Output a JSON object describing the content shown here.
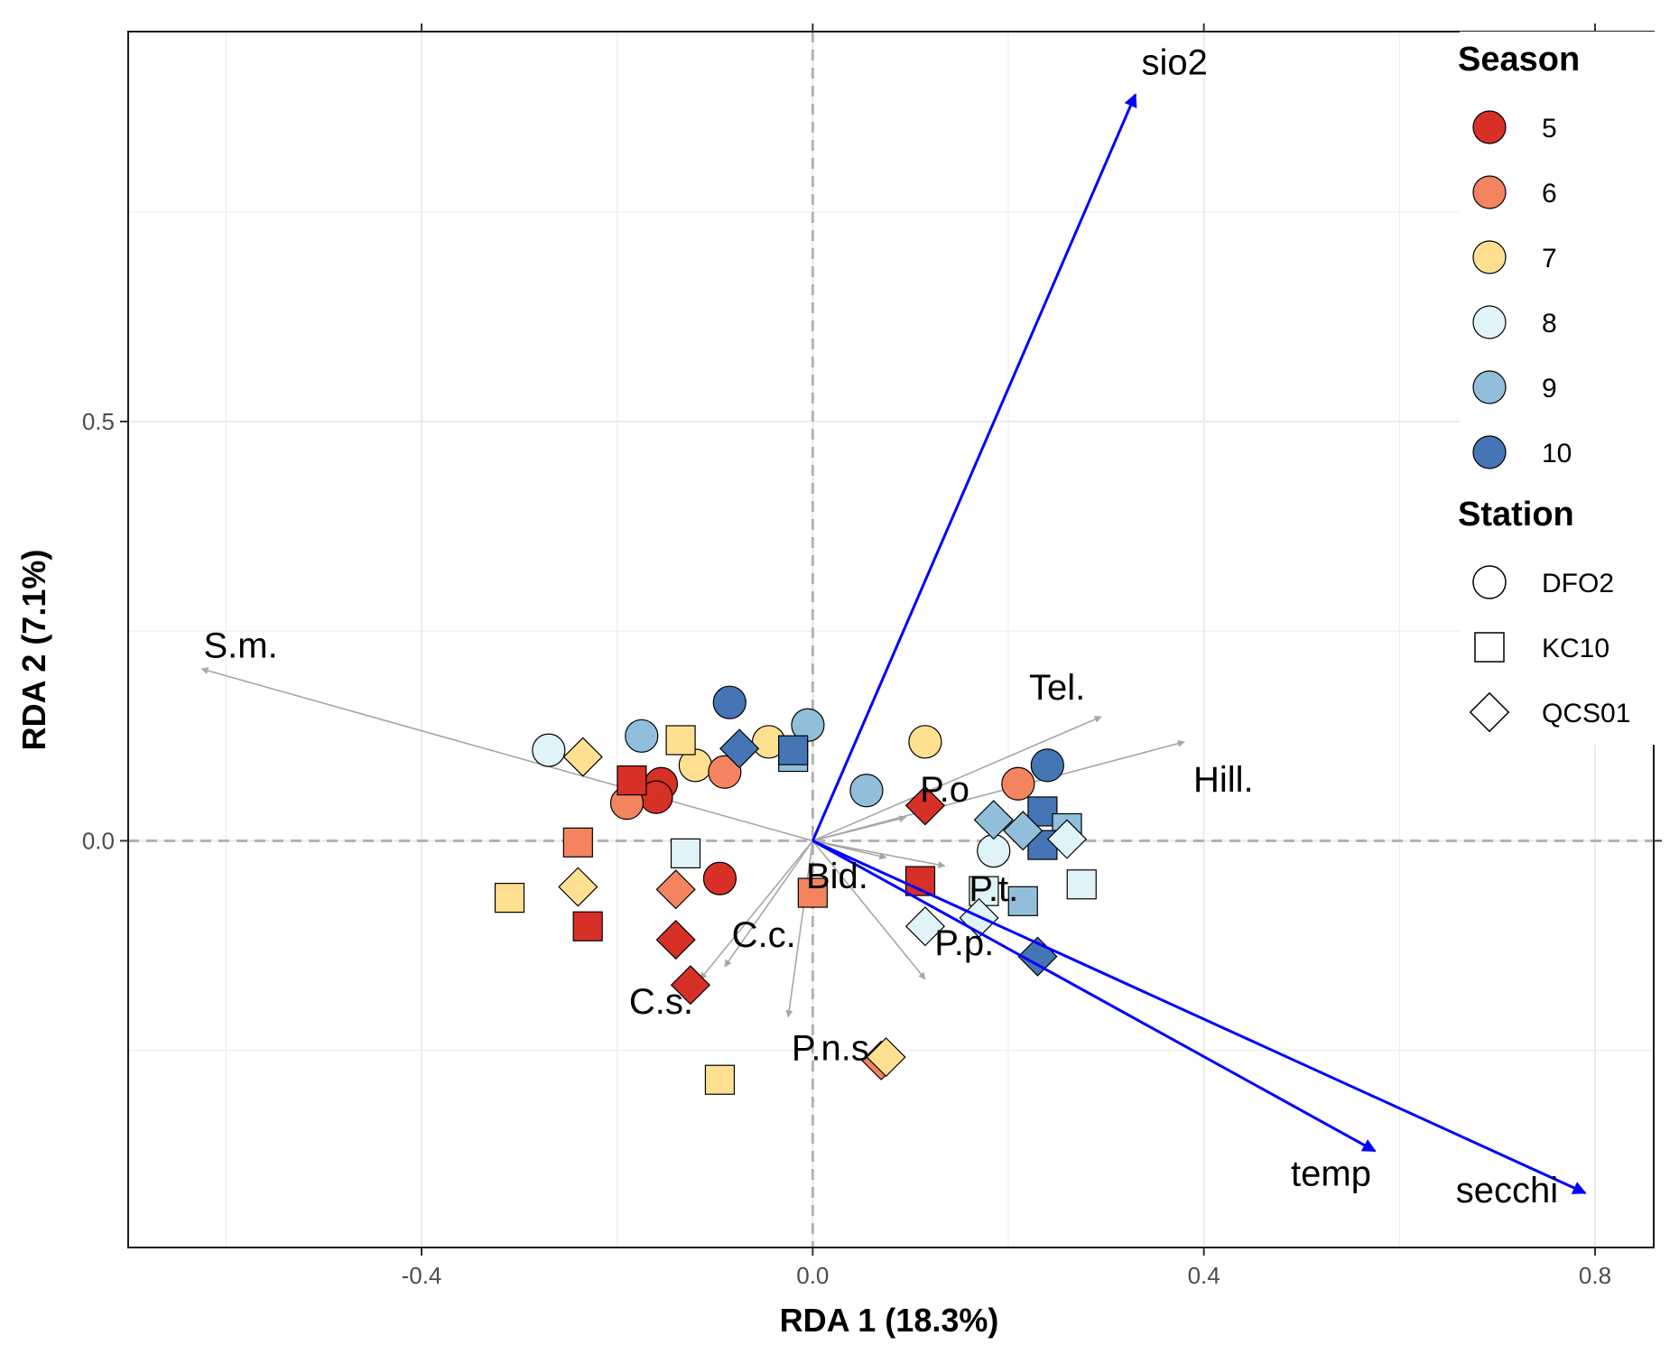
{
  "chart_data": {
    "type": "scatter",
    "title": "",
    "xlabel": "RDA 1 (18.3%)",
    "ylabel": "RDA 2 (7.1%)",
    "xlim": [
      -0.7,
      0.86
    ],
    "ylim": [
      -0.485,
      0.965
    ],
    "x_ticks": [
      -0.4,
      0.0,
      0.4,
      0.8
    ],
    "x_tick_labels": [
      "-0.4",
      "0.0",
      "0.4",
      "0.8"
    ],
    "y_ticks": [
      0.0,
      0.5
    ],
    "y_tick_labels": [
      "0.0",
      "0.5"
    ],
    "minor_x": [
      -0.6,
      -0.2,
      0.2,
      0.6
    ],
    "minor_y": [
      -0.25,
      0.25,
      0.75
    ],
    "grid": true,
    "reference_lines": {
      "x": 0,
      "y": 0
    },
    "colors": {
      "5": "#d73027",
      "6": "#f4845f",
      "7": "#fee090",
      "8": "#e0f3f8",
      "9": "#91bfdb",
      "10": "#4575b4",
      "env_arrow": "#0000ff",
      "species_arrow": "#a6a6a6",
      "grid": "#ebebeb",
      "zero_line": "#b3b3b3"
    },
    "legend": {
      "position": "top-right",
      "season_title": "Season",
      "seasons": [
        "5",
        "6",
        "7",
        "8",
        "9",
        "10"
      ],
      "station_title": "Station",
      "stations": [
        {
          "name": "DFO2",
          "shape": "circle"
        },
        {
          "name": "KC10",
          "shape": "square"
        },
        {
          "name": "QCS01",
          "shape": "diamond"
        }
      ]
    },
    "env_vectors": [
      {
        "name": "sio2",
        "x": 0.33,
        "y": 0.89,
        "label_x": 0.37,
        "label_y": 0.925
      },
      {
        "name": "temp",
        "x": 0.575,
        "y": -0.37,
        "label_x": 0.53,
        "label_y": -0.4
      },
      {
        "name": "secchi",
        "x": 0.79,
        "y": -0.42,
        "label_x": 0.71,
        "label_y": -0.42
      }
    ],
    "species_vectors": [
      {
        "name": "S.m.",
        "x": -0.625,
        "y": 0.205,
        "label_x": -0.585,
        "label_y": 0.23
      },
      {
        "name": "Tel.",
        "x": 0.295,
        "y": 0.148,
        "label_x": 0.25,
        "label_y": 0.18
      },
      {
        "name": "Hill.",
        "x": 0.38,
        "y": 0.118,
        "label_x": 0.42,
        "label_y": 0.07
      },
      {
        "name": "P.o",
        "x": 0.095,
        "y": 0.028,
        "label_x": 0.135,
        "label_y": 0.058
      },
      {
        "name": "Bid.",
        "x": 0.075,
        "y": -0.02,
        "label_x": 0.025,
        "label_y": -0.045
      },
      {
        "name": "P.t.",
        "x": 0.135,
        "y": -0.03,
        "label_x": 0.185,
        "label_y": -0.06
      },
      {
        "name": "P.p.",
        "x": 0.115,
        "y": -0.165,
        "label_x": 0.155,
        "label_y": -0.125
      },
      {
        "name": "C.c.",
        "x": -0.09,
        "y": -0.15,
        "label_x": -0.05,
        "label_y": -0.115
      },
      {
        "name": "C.s.",
        "x": -0.115,
        "y": -0.165,
        "label_x": -0.155,
        "label_y": -0.195
      },
      {
        "name": "P.n.s",
        "x": -0.025,
        "y": -0.21,
        "label_x": 0.018,
        "label_y": -0.25
      }
    ],
    "points": [
      {
        "x": -0.27,
        "y": 0.108,
        "season": "8",
        "station": "DFO2"
      },
      {
        "x": -0.175,
        "y": 0.125,
        "season": "9",
        "station": "DFO2"
      },
      {
        "x": -0.085,
        "y": 0.165,
        "season": "10",
        "station": "DFO2"
      },
      {
        "x": -0.045,
        "y": 0.118,
        "season": "7",
        "station": "DFO2"
      },
      {
        "x": -0.005,
        "y": 0.138,
        "season": "9",
        "station": "DFO2"
      },
      {
        "x": -0.12,
        "y": 0.09,
        "season": "7",
        "station": "DFO2"
      },
      {
        "x": -0.09,
        "y": 0.082,
        "season": "6",
        "station": "DFO2"
      },
      {
        "x": -0.155,
        "y": 0.068,
        "season": "5",
        "station": "DFO2"
      },
      {
        "x": -0.16,
        "y": 0.052,
        "season": "5",
        "station": "DFO2"
      },
      {
        "x": -0.19,
        "y": 0.045,
        "season": "6",
        "station": "DFO2"
      },
      {
        "x": -0.095,
        "y": -0.045,
        "season": "5",
        "station": "DFO2"
      },
      {
        "x": 0.055,
        "y": 0.06,
        "season": "9",
        "station": "DFO2"
      },
      {
        "x": 0.115,
        "y": 0.118,
        "season": "7",
        "station": "DFO2"
      },
      {
        "x": 0.21,
        "y": 0.068,
        "season": "6",
        "station": "DFO2"
      },
      {
        "x": 0.24,
        "y": 0.09,
        "season": "10",
        "station": "DFO2"
      },
      {
        "x": 0.185,
        "y": -0.012,
        "season": "8",
        "station": "DFO2"
      },
      {
        "x": -0.135,
        "y": 0.12,
        "season": "7",
        "station": "KC10"
      },
      {
        "x": -0.185,
        "y": 0.072,
        "season": "5",
        "station": "KC10"
      },
      {
        "x": -0.02,
        "y": 0.1,
        "season": "9",
        "station": "KC10"
      },
      {
        "x": -0.02,
        "y": 0.108,
        "season": "10",
        "station": "KC10"
      },
      {
        "x": -0.24,
        "y": -0.002,
        "season": "6",
        "station": "KC10"
      },
      {
        "x": -0.13,
        "y": -0.015,
        "season": "8",
        "station": "KC10"
      },
      {
        "x": -0.31,
        "y": -0.068,
        "season": "7",
        "station": "KC10"
      },
      {
        "x": -0.23,
        "y": -0.102,
        "season": "5",
        "station": "KC10"
      },
      {
        "x": 0.0,
        "y": -0.062,
        "season": "6",
        "station": "KC10"
      },
      {
        "x": 0.11,
        "y": -0.048,
        "season": "5",
        "station": "KC10"
      },
      {
        "x": -0.095,
        "y": -0.285,
        "season": "7",
        "station": "KC10"
      },
      {
        "x": 0.175,
        "y": -0.06,
        "season": "8",
        "station": "KC10"
      },
      {
        "x": 0.215,
        "y": -0.072,
        "season": "9",
        "station": "KC10"
      },
      {
        "x": 0.235,
        "y": 0.035,
        "season": "10",
        "station": "KC10"
      },
      {
        "x": 0.26,
        "y": 0.015,
        "season": "9",
        "station": "KC10"
      },
      {
        "x": 0.235,
        "y": -0.005,
        "season": "10",
        "station": "KC10"
      },
      {
        "x": 0.275,
        "y": -0.052,
        "season": "8",
        "station": "KC10"
      },
      {
        "x": -0.235,
        "y": 0.1,
        "season": "7",
        "station": "QCS01"
      },
      {
        "x": -0.075,
        "y": 0.11,
        "season": "10",
        "station": "QCS01"
      },
      {
        "x": -0.24,
        "y": -0.055,
        "season": "7",
        "station": "QCS01"
      },
      {
        "x": -0.14,
        "y": -0.058,
        "season": "6",
        "station": "QCS01"
      },
      {
        "x": -0.14,
        "y": -0.118,
        "season": "5",
        "station": "QCS01"
      },
      {
        "x": -0.125,
        "y": -0.172,
        "season": "5",
        "station": "QCS01"
      },
      {
        "x": 0.115,
        "y": 0.042,
        "season": "5",
        "station": "QCS01"
      },
      {
        "x": 0.115,
        "y": -0.102,
        "season": "8",
        "station": "QCS01"
      },
      {
        "x": 0.17,
        "y": -0.092,
        "season": "8",
        "station": "QCS01"
      },
      {
        "x": 0.185,
        "y": 0.025,
        "season": "9",
        "station": "QCS01"
      },
      {
        "x": 0.215,
        "y": 0.012,
        "season": "9",
        "station": "QCS01"
      },
      {
        "x": 0.26,
        "y": 0.002,
        "season": "8",
        "station": "QCS01"
      },
      {
        "x": 0.23,
        "y": -0.138,
        "season": "10",
        "station": "QCS01"
      },
      {
        "x": 0.07,
        "y": -0.262,
        "season": "6",
        "station": "QCS01"
      },
      {
        "x": 0.075,
        "y": -0.258,
        "season": "7",
        "station": "QCS01"
      }
    ]
  }
}
